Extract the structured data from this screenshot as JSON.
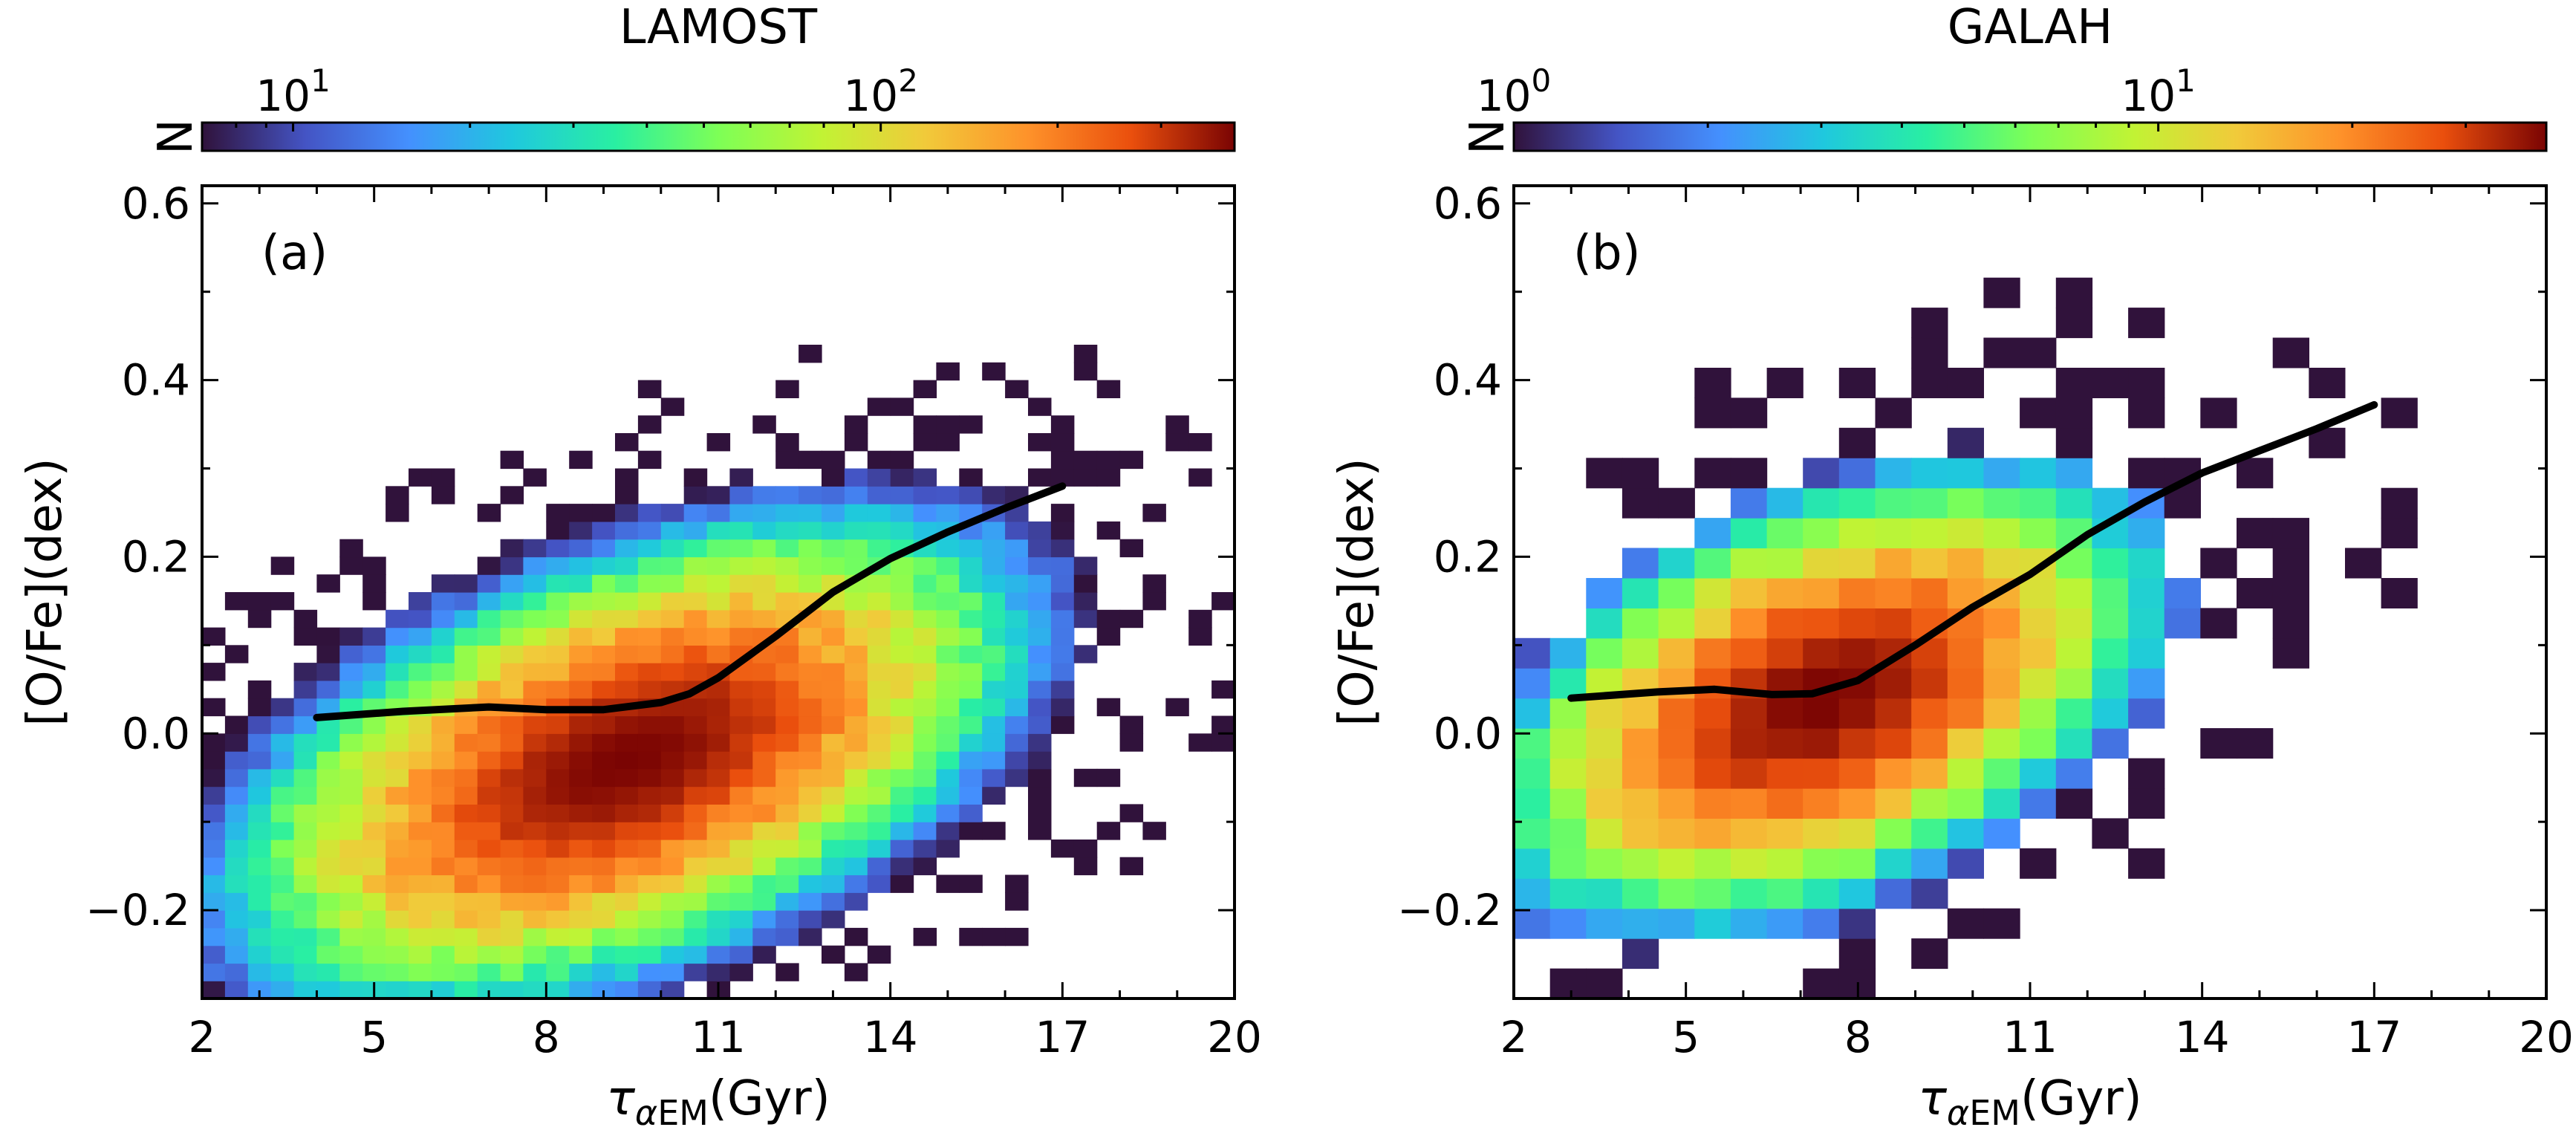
{
  "chart_data": [
    {
      "type": "heatmap",
      "panel_label": "(a)",
      "title": "LAMOST",
      "xlabel_main": "τ",
      "xlabel_sub": "αEM",
      "xlabel_unit": "(Gyr)",
      "ylabel": "[O/Fe](dex)",
      "xlim": [
        2,
        20
      ],
      "ylim": [
        -0.3,
        0.62
      ],
      "xticks": [
        2,
        5,
        8,
        11,
        14,
        17,
        20
      ],
      "xtick_labels": [
        "2",
        "5",
        "8",
        "11",
        "14",
        "17",
        "20"
      ],
      "yticks": [
        -0.2,
        0.0,
        0.2,
        0.4,
        0.6
      ],
      "ytick_labels": [
        "−0.2",
        "0.0",
        "0.2",
        "0.4",
        "0.6"
      ],
      "colorbar": {
        "label": "N",
        "scale": "log",
        "range": [
          7,
          400
        ],
        "tick_values": [
          10,
          100
        ],
        "tick_base": "10",
        "tick_exponents": [
          "1",
          "2"
        ]
      },
      "density": {
        "bin_dx": 0.4,
        "bin_dy": 0.02,
        "center_x": 9.4,
        "center_y": -0.03,
        "sigma_x": 2.9,
        "sigma_y": 0.1,
        "tilt": 0.02,
        "peak": 400,
        "floor": 0.018,
        "edge_noise": 0.45
      },
      "trend_line": {
        "x": [
          4.0,
          5.5,
          7.0,
          8.0,
          9.0,
          10.0,
          10.5,
          11.0,
          12.0,
          13.0,
          14.0,
          15.0,
          16.0,
          17.0
        ],
        "y": [
          0.018,
          0.025,
          0.03,
          0.027,
          0.027,
          0.035,
          0.045,
          0.063,
          0.11,
          0.16,
          0.198,
          0.228,
          0.255,
          0.28
        ]
      }
    },
    {
      "type": "heatmap",
      "panel_label": "(b)",
      "title": "GALAH",
      "xlabel_main": "τ",
      "xlabel_sub": "αEM",
      "xlabel_unit": "(Gyr)",
      "ylabel": "[O/Fe](dex)",
      "xlim": [
        2,
        20
      ],
      "ylim": [
        -0.3,
        0.62
      ],
      "xticks": [
        2,
        5,
        8,
        11,
        14,
        17,
        20
      ],
      "xtick_labels": [
        "2",
        "5",
        "8",
        "11",
        "14",
        "17",
        "20"
      ],
      "yticks": [
        -0.2,
        0.0,
        0.2,
        0.4,
        0.6
      ],
      "ytick_labels": [
        "−0.2",
        "0.0",
        "0.2",
        "0.4",
        "0.6"
      ],
      "colorbar": {
        "label": "N",
        "scale": "log",
        "range": [
          1,
          40
        ],
        "tick_values": [
          1,
          10
        ],
        "tick_base": "10",
        "tick_exponents": [
          "0",
          "1"
        ]
      },
      "density": {
        "bin_dx": 0.63,
        "bin_dy": 0.034,
        "center_x": 7.4,
        "center_y": 0.04,
        "sigma_x": 2.5,
        "sigma_y": 0.1,
        "tilt": 0.02,
        "peak": 40,
        "floor": 0.04,
        "edge_noise": 0.4
      },
      "trend_line": {
        "x": [
          3.0,
          4.5,
          5.5,
          6.5,
          7.2,
          8.0,
          9.0,
          10.0,
          11.0,
          12.0,
          13.0,
          14.0,
          15.0,
          16.0,
          17.0
        ],
        "y": [
          0.04,
          0.047,
          0.05,
          0.044,
          0.045,
          0.06,
          0.1,
          0.143,
          0.18,
          0.225,
          0.262,
          0.295,
          0.32,
          0.345,
          0.372
        ]
      }
    }
  ]
}
